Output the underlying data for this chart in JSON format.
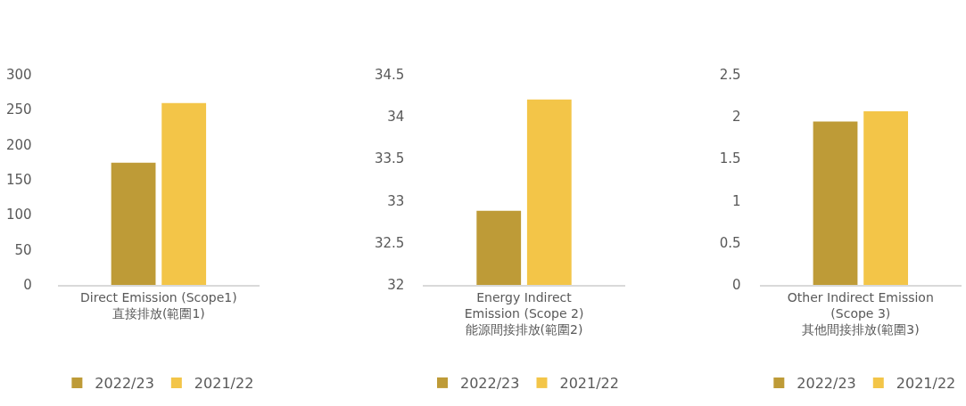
{
  "chart_data": [
    {
      "type": "bar",
      "categories": [
        "Direct Emission (Scope1)\n直接排放(範圍1)"
      ],
      "series": [
        {
          "name": "2022/23",
          "color": "#be9b37",
          "values": [
            174
          ]
        },
        {
          "name": "2021/22",
          "color": "#f3c548",
          "values": [
            259
          ]
        }
      ],
      "ylim": [
        0,
        300
      ],
      "yticks": [
        0,
        50,
        100,
        150,
        200,
        250,
        300
      ],
      "legend": "bottom"
    },
    {
      "type": "bar",
      "categories": [
        "Energy Indirect\nEmission (Scope 2)\n能源間接排放(範圍2)"
      ],
      "series": [
        {
          "name": "2022/23",
          "color": "#be9b37",
          "values": [
            32.88
          ]
        },
        {
          "name": "2021/22",
          "color": "#f3c548",
          "values": [
            34.2
          ]
        }
      ],
      "ylim": [
        32,
        34.5
      ],
      "yticks": [
        32,
        32.5,
        33,
        33.5,
        34,
        34.5
      ],
      "legend": "bottom"
    },
    {
      "type": "bar",
      "categories": [
        "Other Indirect Emission\n(Scope 3)\n其他間接排放(範圍3)"
      ],
      "series": [
        {
          "name": "2022/23",
          "color": "#be9b37",
          "values": [
            1.94
          ]
        },
        {
          "name": "2021/22",
          "color": "#f3c548",
          "values": [
            2.06
          ]
        }
      ],
      "ylim": [
        0,
        2.5
      ],
      "yticks": [
        0,
        0.5,
        1,
        1.5,
        2,
        2.5
      ],
      "legend": "bottom"
    }
  ]
}
